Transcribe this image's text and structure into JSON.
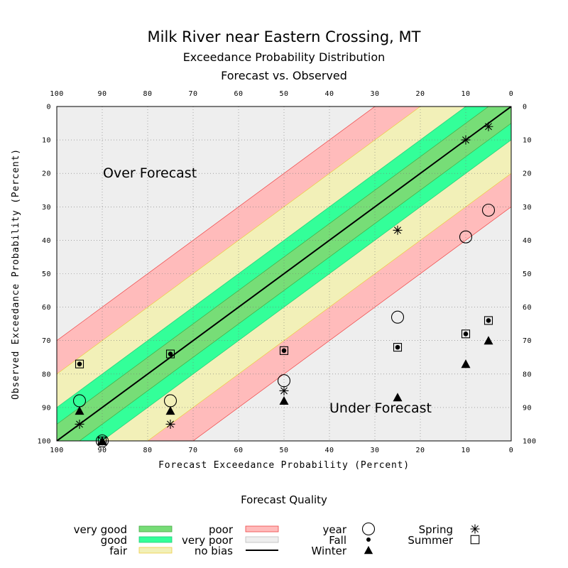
{
  "chart_data": {
    "type": "scatter",
    "title": "Milk River near Eastern Crossing, MT",
    "subtitle_1": "Exceedance Probability Distribution",
    "subtitle_2": "Forecast vs. Observed",
    "xlabel": "Forecast Exceedance Probability (Percent)",
    "ylabel": "Observed Exceedance Probability (Percent)",
    "xlim": [
      100,
      0
    ],
    "ylim": [
      0,
      100
    ],
    "x_ticks": [
      "100",
      "90",
      "80",
      "70",
      "60",
      "50",
      "40",
      "30",
      "20",
      "10",
      "0"
    ],
    "y_ticks": [
      "0",
      "10",
      "20",
      "30",
      "40",
      "50",
      "60",
      "70",
      "80",
      "90",
      "100"
    ],
    "grid": true,
    "annotations": {
      "over": "Over Forecast",
      "under": "Under Forecast"
    },
    "bands": [
      {
        "name": "very good",
        "half_width": 5,
        "color": "#77dd77"
      },
      {
        "name": "good",
        "half_width": 10,
        "color": "#33ff99"
      },
      {
        "name": "fair",
        "half_width": 20,
        "color": "#f2f0b8"
      },
      {
        "name": "poor",
        "half_width": 30,
        "color": "#ffbbbb"
      },
      {
        "name": "very poor",
        "color": "#eeeeee"
      }
    ],
    "series": [
      {
        "name": "year",
        "marker": "large-circle",
        "points": [
          [
            95,
            88
          ],
          [
            90,
            100
          ],
          [
            75,
            88
          ],
          [
            50,
            82
          ],
          [
            25,
            63
          ],
          [
            10,
            39
          ],
          [
            5,
            31
          ]
        ]
      },
      {
        "name": "Fall",
        "marker": "dot",
        "points": [
          [
            95,
            77
          ],
          [
            75,
            74
          ],
          [
            50,
            73
          ],
          [
            25,
            72
          ],
          [
            10,
            68
          ],
          [
            5,
            64
          ]
        ]
      },
      {
        "name": "Winter",
        "marker": "triangle",
        "points": [
          [
            95,
            91
          ],
          [
            90,
            100
          ],
          [
            75,
            91
          ],
          [
            50,
            88
          ],
          [
            25,
            87
          ],
          [
            10,
            77
          ],
          [
            5,
            70
          ]
        ]
      },
      {
        "name": "Spring",
        "marker": "asterisk",
        "points": [
          [
            95,
            95
          ],
          [
            90,
            100
          ],
          [
            75,
            95
          ],
          [
            50,
            85
          ],
          [
            25,
            37
          ],
          [
            10,
            10
          ],
          [
            5,
            6
          ]
        ]
      },
      {
        "name": "Summer",
        "marker": "square",
        "points": [
          [
            95,
            77
          ],
          [
            90,
            100
          ],
          [
            75,
            74
          ],
          [
            50,
            73
          ],
          [
            25,
            72
          ],
          [
            10,
            68
          ],
          [
            5,
            64
          ]
        ]
      }
    ]
  },
  "legend": {
    "title": "Forecast Quality",
    "very_good": "very good",
    "good": "good",
    "fair": "fair",
    "poor": "poor",
    "very_poor": "very poor",
    "no_bias": "no bias",
    "year": "year",
    "fall": "Fall",
    "winter": "Winter",
    "spring": "Spring",
    "summer": "Summer"
  },
  "colors": {
    "very_good": "#77dd77",
    "good": "#33ff99",
    "fair": "#f2f0b8",
    "poor": "#ffbbbb",
    "very_poor": "#eeeeee",
    "no_bias_line": "#000000"
  }
}
